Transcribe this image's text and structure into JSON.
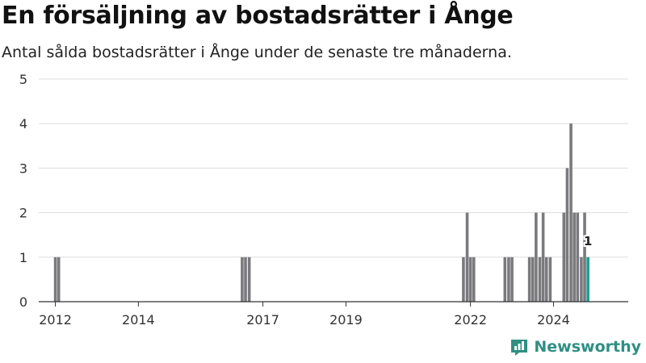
{
  "title": "En försäljning av bostadsrätter i Ånge",
  "subtitle": "Antal sålda bostadsrätter i Ånge under de senaste tre månaderna.",
  "brand": {
    "name": "Newsworthy"
  },
  "colors": {
    "bar": "#7a7a7e",
    "highlight": "#1e9e8e",
    "grid": "#dddddd",
    "axis": "#333333"
  },
  "chart_data": {
    "type": "bar",
    "xlim": [
      2011.6,
      2025.8
    ],
    "ylim": [
      0,
      5
    ],
    "yticks": [
      0,
      1,
      2,
      3,
      4,
      5
    ],
    "xticks": [
      2012,
      2014,
      2017,
      2019,
      2022,
      2024
    ],
    "xtick_labels": [
      "2012",
      "2014",
      "2017",
      "2019",
      "2022",
      "2024"
    ],
    "bars": [
      {
        "x": 2012.0,
        "y": 1
      },
      {
        "x": 2012.08,
        "y": 1
      },
      {
        "x": 2016.5,
        "y": 1
      },
      {
        "x": 2016.58,
        "y": 1
      },
      {
        "x": 2016.67,
        "y": 1
      },
      {
        "x": 2021.83,
        "y": 1
      },
      {
        "x": 2021.92,
        "y": 2
      },
      {
        "x": 2022.0,
        "y": 1
      },
      {
        "x": 2022.08,
        "y": 1
      },
      {
        "x": 2022.83,
        "y": 1
      },
      {
        "x": 2022.92,
        "y": 1
      },
      {
        "x": 2023.0,
        "y": 1
      },
      {
        "x": 2023.42,
        "y": 1
      },
      {
        "x": 2023.5,
        "y": 1
      },
      {
        "x": 2023.58,
        "y": 2
      },
      {
        "x": 2023.67,
        "y": 1
      },
      {
        "x": 2023.75,
        "y": 2
      },
      {
        "x": 2023.83,
        "y": 1
      },
      {
        "x": 2023.92,
        "y": 1
      },
      {
        "x": 2024.25,
        "y": 2
      },
      {
        "x": 2024.33,
        "y": 3
      },
      {
        "x": 2024.42,
        "y": 4
      },
      {
        "x": 2024.5,
        "y": 2
      },
      {
        "x": 2024.58,
        "y": 2
      },
      {
        "x": 2024.67,
        "y": 1
      },
      {
        "x": 2024.75,
        "y": 2
      },
      {
        "x": 2024.83,
        "y": 1,
        "highlight": true,
        "label": "1"
      }
    ]
  }
}
